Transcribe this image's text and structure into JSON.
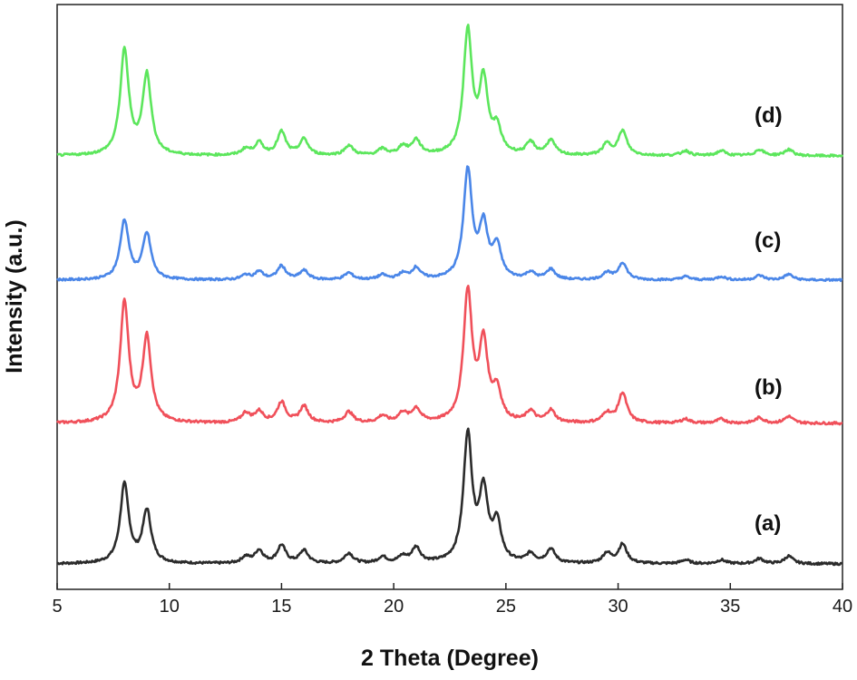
{
  "chart_data": {
    "type": "line",
    "xlabel": "2 Theta (Degree)",
    "ylabel": "Intensity (a.u.)",
    "xlim": [
      5,
      40
    ],
    "xticks": [
      5,
      10,
      15,
      20,
      25,
      30,
      35,
      40
    ],
    "y_ticks_shown": false,
    "grid": false,
    "layout": "stacked, offset vertically",
    "peaks_2theta": [
      8.0,
      9.0,
      13.4,
      14.0,
      15.0,
      16.0,
      18.0,
      19.5,
      20.4,
      21.0,
      23.3,
      24.0,
      24.6,
      26.1,
      27.0,
      29.5,
      30.2,
      33.0,
      34.6,
      36.3,
      37.6
    ],
    "series": [
      {
        "name": "(a)",
        "color": "#2b2b2b",
        "relative_intensities": [
          0.62,
          0.41,
          0.05,
          0.1,
          0.14,
          0.1,
          0.08,
          0.05,
          0.05,
          0.12,
          1.0,
          0.54,
          0.3,
          0.07,
          0.11,
          0.08,
          0.15,
          0.03,
          0.03,
          0.04,
          0.06
        ]
      },
      {
        "name": "(b)",
        "color": "#f0505a",
        "relative_intensities": [
          0.88,
          0.62,
          0.07,
          0.08,
          0.15,
          0.12,
          0.08,
          0.05,
          0.07,
          0.1,
          0.95,
          0.56,
          0.22,
          0.08,
          0.09,
          0.07,
          0.22,
          0.03,
          0.03,
          0.04,
          0.05
        ]
      },
      {
        "name": "(c)",
        "color": "#4a86e8",
        "relative_intensities": [
          0.52,
          0.4,
          0.04,
          0.07,
          0.12,
          0.08,
          0.06,
          0.04,
          0.05,
          0.1,
          0.95,
          0.45,
          0.28,
          0.06,
          0.09,
          0.06,
          0.15,
          0.03,
          0.03,
          0.04,
          0.05
        ]
      },
      {
        "name": "(d)",
        "color": "#5ce65c",
        "relative_intensities": [
          0.85,
          0.65,
          0.05,
          0.1,
          0.19,
          0.13,
          0.08,
          0.05,
          0.07,
          0.12,
          1.0,
          0.58,
          0.2,
          0.1,
          0.12,
          0.09,
          0.2,
          0.04,
          0.04,
          0.05,
          0.05
        ]
      }
    ]
  }
}
